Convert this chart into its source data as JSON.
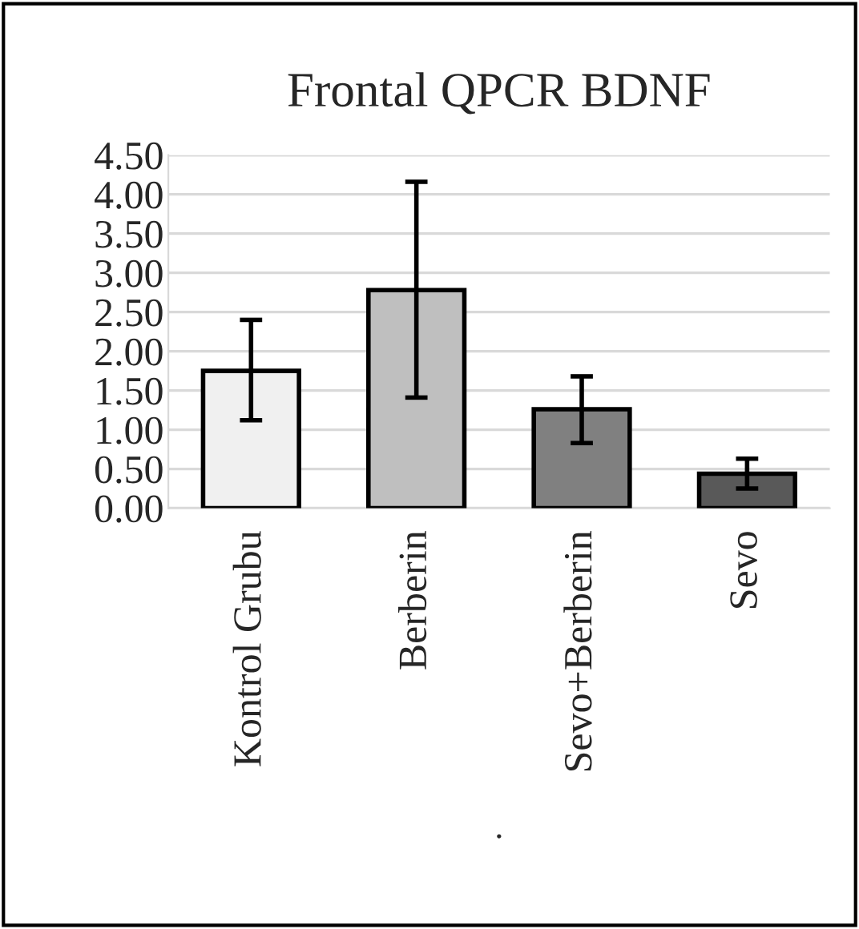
{
  "chart_data": {
    "type": "bar",
    "title": "Frontal QPCR BDNF",
    "xlabel": ".",
    "categories": [
      "Kontrol Grubu",
      "Berberin",
      "Sevo+Berberin",
      "Sevo"
    ],
    "values": [
      1.75,
      2.78,
      1.26,
      0.44
    ],
    "colors": [
      "#f0f0f0",
      "#bfbfbf",
      "#808080",
      "#595959"
    ],
    "errors": [
      [
        1.12,
        2.4
      ],
      [
        1.41,
        4.16
      ],
      [
        0.83,
        1.68
      ],
      [
        0.25,
        0.63
      ]
    ],
    "ylim": [
      0,
      4.5
    ],
    "yticks": [
      {
        "value": 0,
        "label": "0.00"
      },
      {
        "value": 0.5,
        "label": "0.50"
      },
      {
        "value": 1,
        "label": "1.00"
      },
      {
        "value": 1.5,
        "label": "1.50"
      },
      {
        "value": 2,
        "label": "2.00"
      },
      {
        "value": 2.5,
        "label": "2.50"
      },
      {
        "value": 3,
        "label": "3.00"
      },
      {
        "value": 3.5,
        "label": "3.50"
      },
      {
        "value": 4,
        "label": "4.00"
      },
      {
        "value": 4.5,
        "label": "4.50"
      }
    ],
    "grid": "y"
  }
}
